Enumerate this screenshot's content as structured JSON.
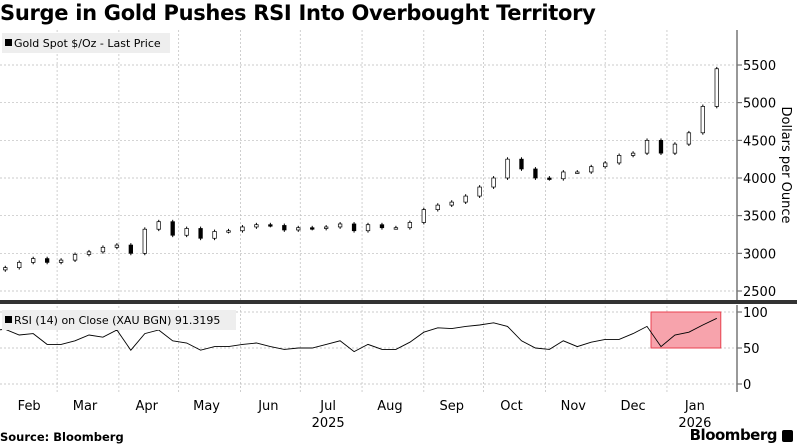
{
  "title": "Surge in Gold Pushes RSI Into Overbought Territory",
  "source": "Source: Bloomberg",
  "brand": "Bloomberg",
  "colors": {
    "line": "#000000",
    "highlight_fill": "#f7a3ac",
    "highlight_border": "#e8414f",
    "grid": "#bbbbbb"
  },
  "chart_data": [
    {
      "type": "candlestick",
      "legend": "Gold Spot $/Oz - Last Price",
      "ylabel": "Dollars per Ounce",
      "ylim": [
        2400,
        5900
      ],
      "yticks": [
        2500,
        3000,
        3500,
        4000,
        4500,
        5000,
        5500
      ],
      "grid": true,
      "legend_placement": "top-left",
      "x": [
        "2025-01-30",
        "2025-02-03",
        "2025-02-10",
        "2025-02-17",
        "2025-02-24",
        "2025-03-03",
        "2025-03-10",
        "2025-03-17",
        "2025-03-24",
        "2025-03-31",
        "2025-04-07",
        "2025-04-14",
        "2025-04-21",
        "2025-04-28",
        "2025-05-05",
        "2025-05-12",
        "2025-05-19",
        "2025-05-26",
        "2025-06-02",
        "2025-06-09",
        "2025-06-16",
        "2025-06-23",
        "2025-06-30",
        "2025-07-07",
        "2025-07-14",
        "2025-07-21",
        "2025-07-28",
        "2025-08-04",
        "2025-08-11",
        "2025-08-18",
        "2025-08-25",
        "2025-09-01",
        "2025-09-08",
        "2025-09-15",
        "2025-09-22",
        "2025-09-29",
        "2025-10-06",
        "2025-10-13",
        "2025-10-20",
        "2025-10-27",
        "2025-11-03",
        "2025-11-10",
        "2025-11-17",
        "2025-11-24",
        "2025-12-01",
        "2025-12-08",
        "2025-12-15",
        "2025-12-22",
        "2025-12-29",
        "2026-01-05",
        "2026-01-12",
        "2026-01-19",
        "2026-01-26"
      ],
      "values": [
        2780,
        2810,
        2880,
        2930,
        2880,
        2910,
        2985,
        3020,
        3080,
        3110,
        3000,
        3320,
        3420,
        3240,
        3330,
        3200,
        3290,
        3300,
        3350,
        3380,
        3370,
        3310,
        3340,
        3330,
        3350,
        3390,
        3300,
        3380,
        3340,
        3340,
        3410,
        3580,
        3640,
        3680,
        3760,
        3880,
        4000,
        4250,
        4120,
        4000,
        3990,
        4080,
        4080,
        4150,
        4200,
        4300,
        4330,
        4500,
        4330,
        4450,
        4600,
        4950,
        5450
      ]
    },
    {
      "type": "line",
      "legend": "RSI (14)  on Close (XAU BGN) 91.3195",
      "ylim": [
        -5,
        108
      ],
      "yticks": [
        0,
        50,
        100
      ],
      "grid": true,
      "x_tick_labels": [
        "Feb",
        "Mar",
        "Apr",
        "May",
        "Jun",
        "Jul",
        "Aug",
        "Sep",
        "Oct",
        "Nov",
        "Dec",
        "Jan"
      ],
      "x_year_labels": {
        "Jul": "2025",
        "Jan": "2026"
      },
      "values": [
        75,
        76,
        68,
        70,
        55,
        55,
        60,
        68,
        65,
        75,
        47,
        70,
        75,
        60,
        57,
        47,
        52,
        52,
        55,
        57,
        52,
        48,
        50,
        50,
        55,
        60,
        45,
        55,
        48,
        48,
        58,
        72,
        78,
        77,
        80,
        82,
        85,
        80,
        60,
        50,
        48,
        60,
        52,
        58,
        62,
        62,
        70,
        80,
        52,
        68,
        72,
        82,
        91.3
      ],
      "highlight": {
        "from": "2025-12-24",
        "to": "2026-01-28",
        "y_range": [
          50,
          100
        ]
      }
    }
  ]
}
